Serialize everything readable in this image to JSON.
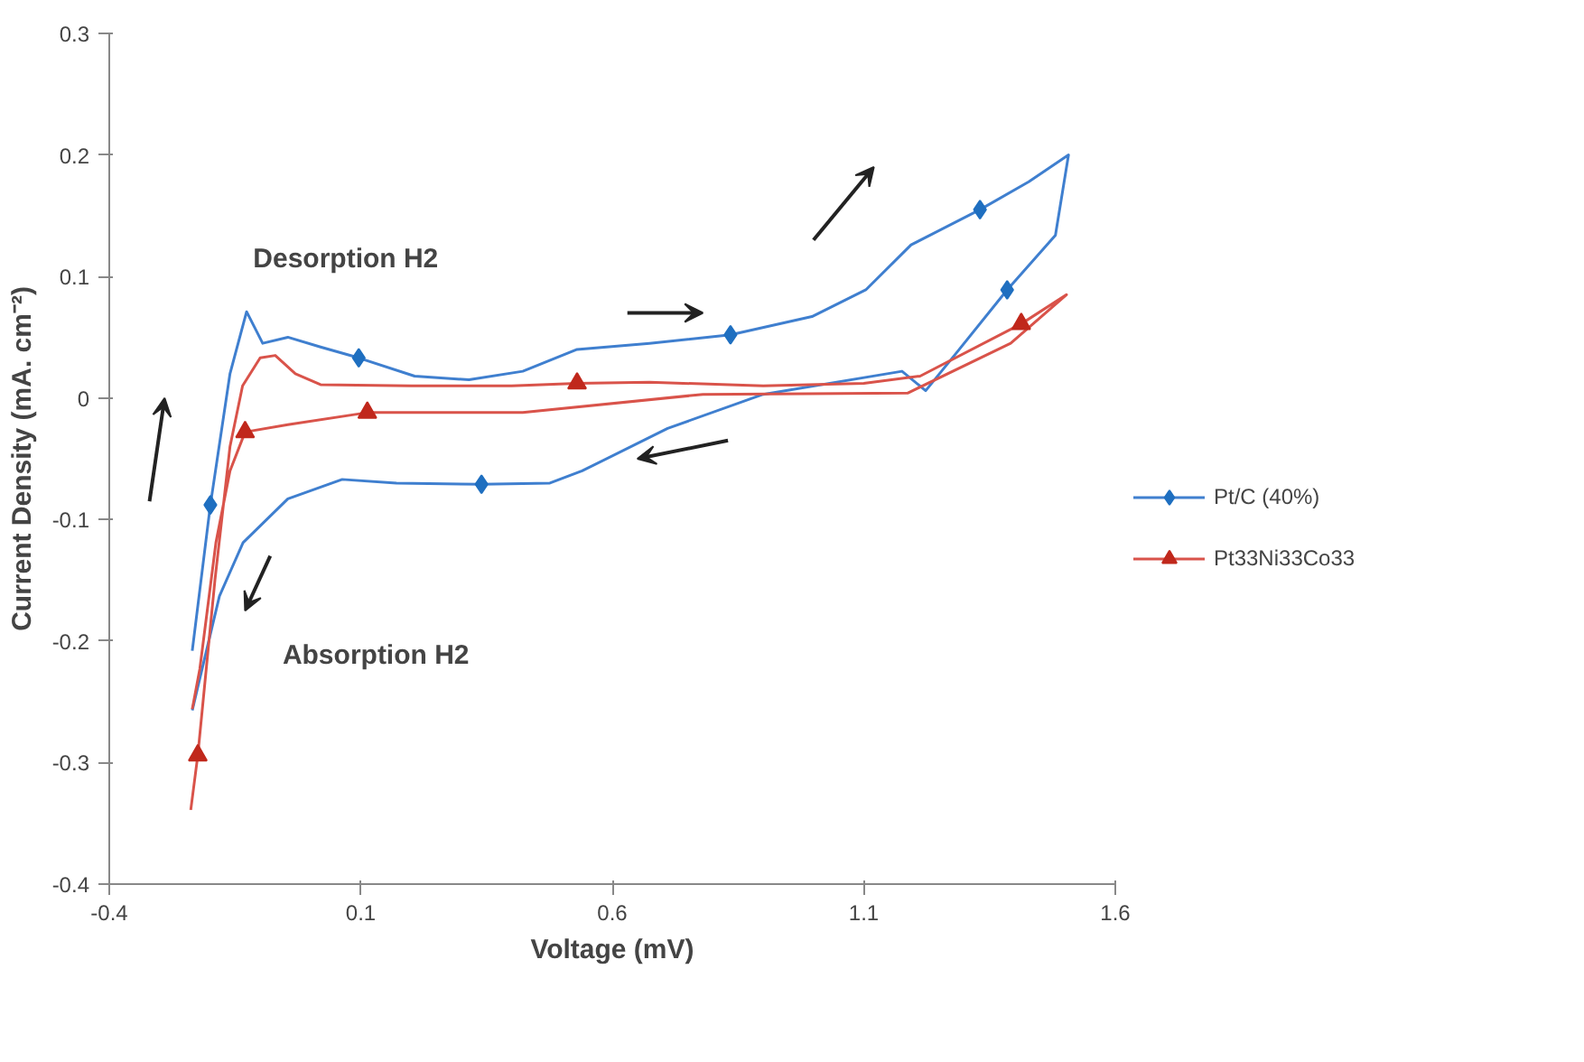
{
  "chart_data": {
    "type": "line",
    "xlabel": "Voltage (mV)",
    "ylabel": "Current Density (mA. cm⁻²)",
    "xlim": [
      -0.4,
      1.6
    ],
    "xticks": [
      -0.4,
      0.1,
      0.6,
      1.1,
      1.6
    ],
    "ylim": [
      -0.4,
      0.3
    ],
    "yticks": [
      0.3,
      0.2,
      0.1,
      0,
      -0.1,
      -0.2,
      -0.3,
      -0.4
    ],
    "grid": false,
    "legend": "right",
    "annotations": [
      "Desorption H2",
      "Absorption H2"
    ],
    "series": [
      {
        "name": "Pt/C (40%)",
        "color": "#3f7fcf",
        "x": [
          -0.235,
          -0.199,
          -0.16,
          -0.127,
          -0.095,
          -0.045,
          0.02,
          0.096,
          0.207,
          0.315,
          0.422,
          0.53,
          0.674,
          0.835,
          0.997,
          1.104,
          1.194,
          1.331,
          1.428,
          1.507,
          1.481,
          1.385,
          1.284,
          1.223,
          1.176,
          0.9,
          0.71,
          0.54,
          0.476,
          0.34,
          0.171,
          0.063,
          -0.045,
          -0.134,
          -0.181,
          -0.235
        ],
        "values": [
          -0.208,
          -0.088,
          0.02,
          0.071,
          0.045,
          0.05,
          0.042,
          0.033,
          0.018,
          0.015,
          0.022,
          0.04,
          0.045,
          0.052,
          0.067,
          0.089,
          0.126,
          0.155,
          0.178,
          0.2,
          0.134,
          0.089,
          0.037,
          0.006,
          0.022,
          0.003,
          -0.025,
          -0.06,
          -0.07,
          -0.071,
          -0.07,
          -0.067,
          -0.083,
          -0.119,
          -0.163,
          -0.257
        ]
      },
      {
        "name": "Pt33Ni33Co33",
        "color": "#d9534a",
        "x": [
          -0.238,
          -0.224,
          -0.19,
          -0.16,
          -0.135,
          -0.1,
          -0.07,
          -0.03,
          0.02,
          0.2,
          0.4,
          0.53,
          0.674,
          0.9,
          1.1,
          1.212,
          1.413,
          1.503,
          1.392,
          1.187,
          0.78,
          0.422,
          0.113,
          -0.045,
          -0.13,
          -0.16,
          -0.188,
          -0.22,
          -0.235
        ],
        "values": [
          -0.339,
          -0.294,
          -0.15,
          -0.04,
          0.01,
          0.033,
          0.035,
          0.02,
          0.011,
          0.01,
          0.01,
          0.012,
          0.013,
          0.01,
          0.012,
          0.018,
          0.061,
          0.085,
          0.045,
          0.004,
          0.003,
          -0.012,
          -0.012,
          -0.022,
          -0.028,
          -0.06,
          -0.119,
          -0.223,
          -0.256
        ]
      },
      {
        "type": "scatter",
        "marker": "diamond",
        "color": "#1f6fc0",
        "x": [
          -0.199,
          0.096,
          0.34,
          0.835,
          1.331,
          1.385
        ],
        "values": [
          -0.088,
          0.033,
          -0.071,
          0.052,
          0.155,
          0.089
        ]
      },
      {
        "type": "scatter",
        "marker": "triangle",
        "color": "#c0281c",
        "x": [
          -0.224,
          -0.13,
          0.113,
          0.53,
          1.413
        ],
        "values": [
          -0.294,
          -0.028,
          -0.012,
          0.012,
          0.061
        ]
      }
    ]
  }
}
